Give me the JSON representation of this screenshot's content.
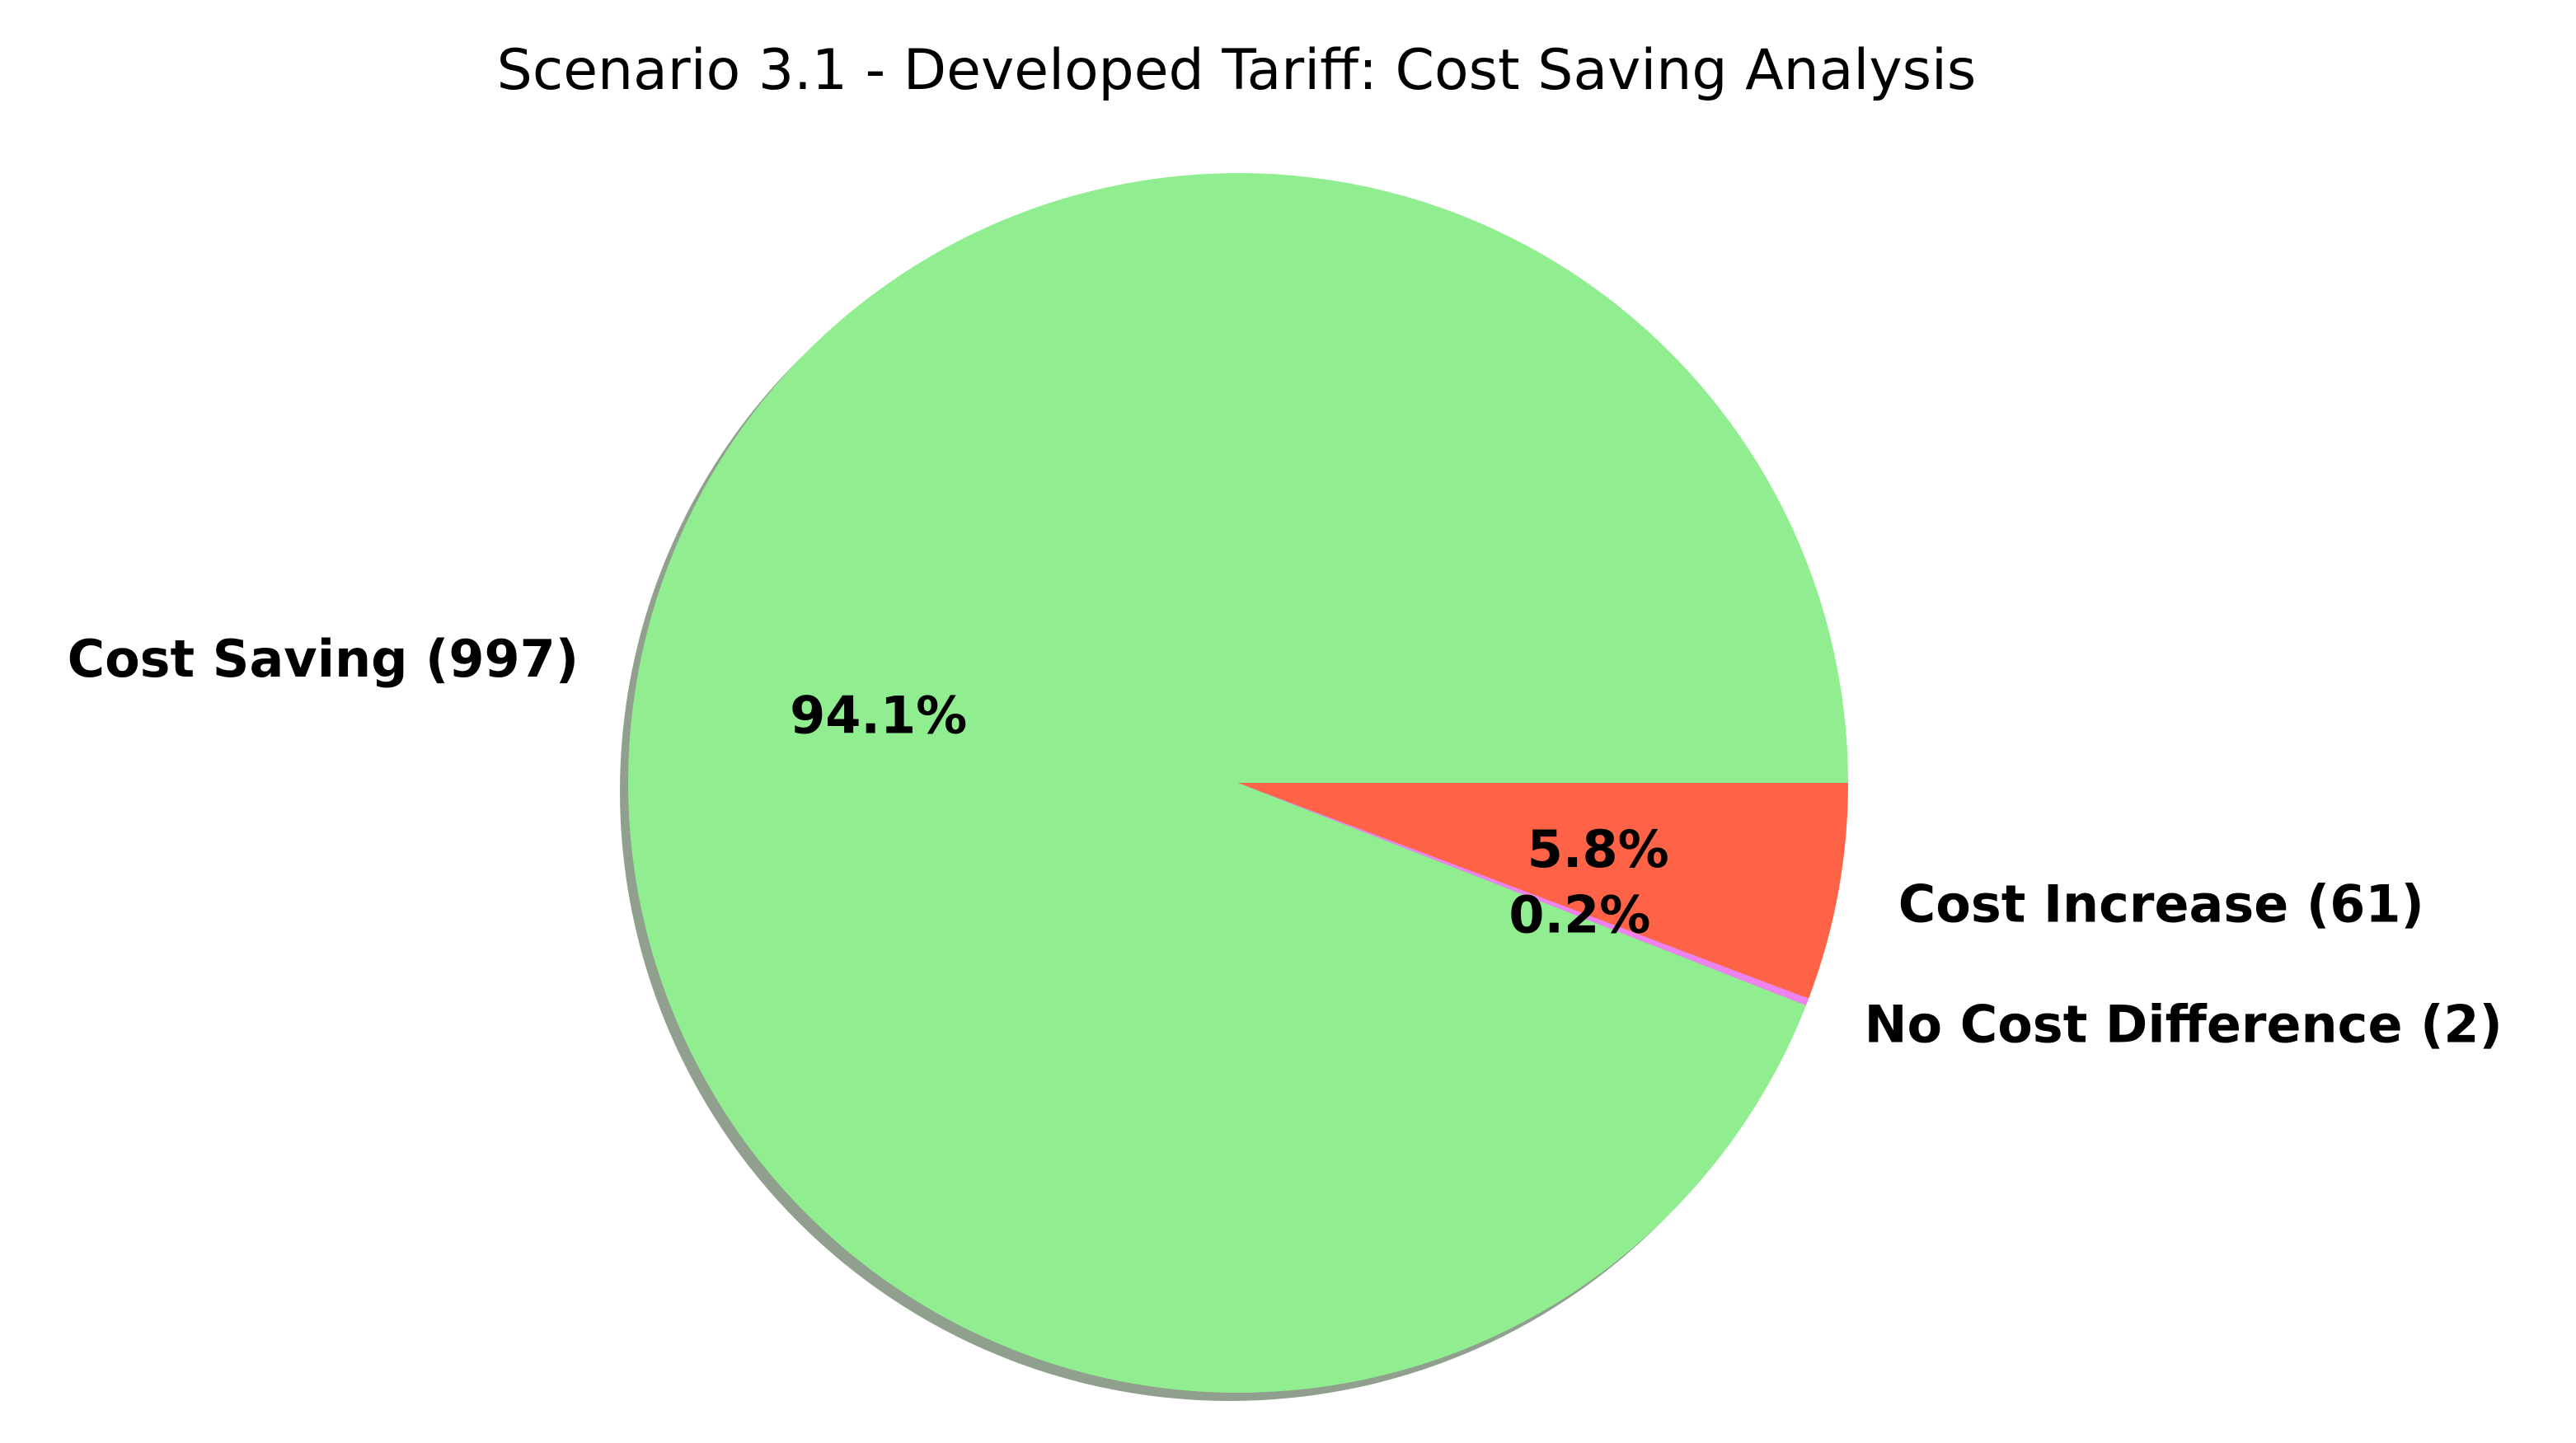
{
  "chart_data": {
    "type": "pie",
    "title": "Scenario 3.1 - Developed Tariff: Cost Saving Analysis",
    "slices": [
      {
        "label": "Cost Saving (997)",
        "value": 997,
        "percent_label": "94.1%",
        "color": "#90EE90"
      },
      {
        "label": "Cost Increase (61)",
        "value": 61,
        "percent_label": "5.8%",
        "color": "#FF6347"
      },
      {
        "label": "No Cost Difference (2)",
        "value": 2,
        "percent_label": "0.2%",
        "color": "#EE82EE"
      }
    ],
    "shadow": true
  }
}
